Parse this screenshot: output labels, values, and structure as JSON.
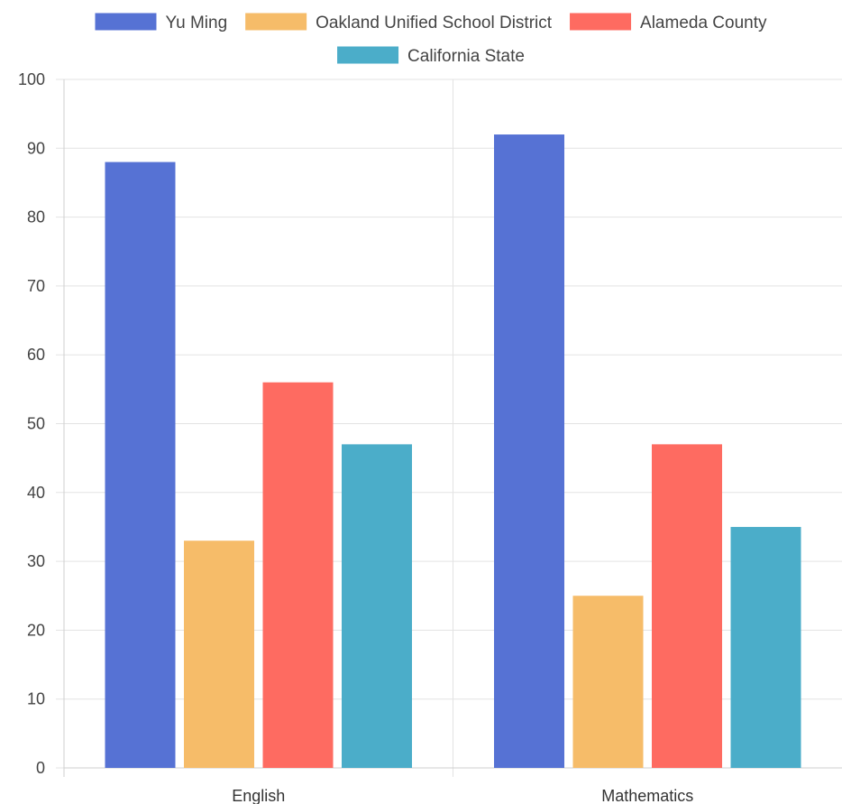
{
  "chart_data": {
    "type": "bar",
    "categories": [
      "English",
      "Mathematics"
    ],
    "series": [
      {
        "name": "Yu Ming",
        "color": "#5672d4",
        "values": [
          88,
          92
        ]
      },
      {
        "name": "Oakland Unified School District",
        "color": "#f6bc69",
        "values": [
          33,
          25
        ]
      },
      {
        "name": "Alameda County",
        "color": "#fe6b61",
        "values": [
          56,
          47
        ]
      },
      {
        "name": "California State",
        "color": "#4badc9",
        "values": [
          47,
          35
        ]
      }
    ],
    "y_ticks": [
      "0",
      "10",
      "20",
      "30",
      "40",
      "50",
      "60",
      "70",
      "80",
      "90",
      "100"
    ],
    "ylim": [
      0,
      100
    ],
    "grid": true,
    "legend_position": "top-center",
    "title": "",
    "xlabel": "",
    "ylabel": ""
  }
}
